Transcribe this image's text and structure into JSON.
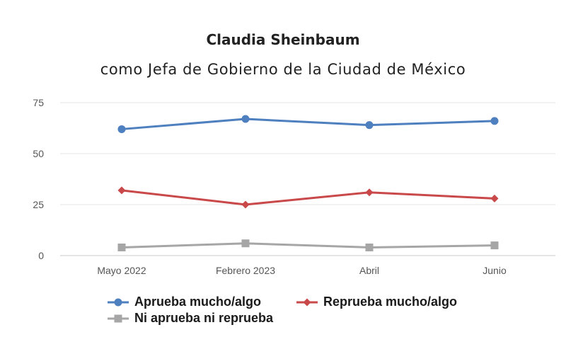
{
  "title": "Claudia Sheinbaum",
  "subtitle": "como Jefa de Gobierno de la Ciudad de México",
  "chart_data": {
    "type": "line",
    "categories": [
      "Mayo 2022",
      "Febrero 2023",
      "Abril",
      "Junio"
    ],
    "ylim": [
      0,
      75
    ],
    "yticks": [
      0,
      25,
      50,
      75
    ],
    "grid": true,
    "legend_position": "bottom",
    "series": [
      {
        "name": "Aprueba mucho/algo",
        "color": "#4e7fbe",
        "marker": "circle",
        "values": [
          62,
          67,
          64,
          66
        ]
      },
      {
        "name": "Reprueba mucho/algo",
        "color": "#c9484a",
        "marker": "diamond",
        "values": [
          32,
          25,
          31,
          28
        ]
      },
      {
        "name": "Ni aprueba ni reprueba",
        "color": "#a6a6a6",
        "marker": "square",
        "values": [
          4,
          6,
          4,
          5
        ]
      }
    ]
  }
}
